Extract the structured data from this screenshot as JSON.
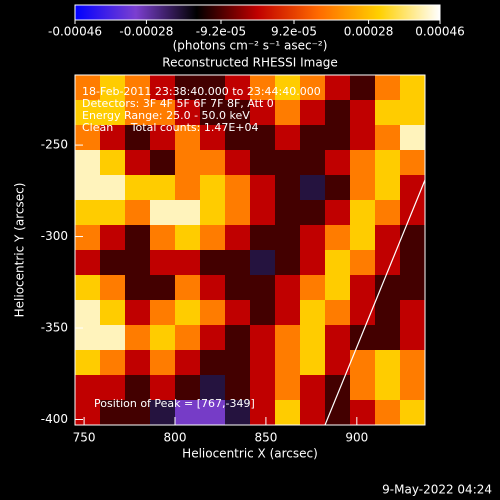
{
  "chart_data": {
    "type": "heatmap",
    "title": "Reconstructed RHESSI Image",
    "xlabel": "Heliocentric X (arcsec)",
    "ylabel": "Heliocentric Y (arcsec)",
    "colorbar_label": "(photons cm⁻² s⁻¹ asec⁻²)",
    "annotations": [
      "18-Feb-2011 23:38:40.000 to 23:44:40.000",
      "Detectors: 3F 4F 5F 6F 7F 8F, Att 0",
      "Energy Range: 25.0 - 50.0 keV",
      "Clean     Total counts: 1.47E+04"
    ],
    "peak_label": "Position of Peak = [767,-349]",
    "footer": "9-May-2022 04:24",
    "xlim": [
      745,
      937.5
    ],
    "ylim": [
      -403,
      -211.7
    ],
    "xticks": [
      750,
      800,
      850,
      900
    ],
    "yticks": [
      -250,
      -300,
      -350,
      -400
    ],
    "zlim": [
      -0.00046,
      0.00046
    ],
    "zticks": [
      -0.00046,
      -0.00028,
      {
        "value": -9.2e-05,
        "label": "-9.2e-05"
      },
      {
        "value": 9.2e-05,
        "label": "9.2e-05"
      },
      0.00028,
      0.00046
    ],
    "colormap": [
      "#0000ff",
      "#7b3fd0",
      "#000000",
      "#c00000",
      "#ff6a00",
      "#ffd000",
      "#ffffff"
    ],
    "z": [
      [
        0.00018,
        0.0003,
        0.00018,
        0,
        -0.0001,
        -0.0001,
        0,
        0.00018,
        0.0003,
        0.00018,
        0,
        -0.0001,
        0.00018,
        0.0003
      ],
      [
        0.0003,
        0.0003,
        0.00018,
        0.00018,
        0,
        -0.0001,
        -0.0001,
        0,
        0.00018,
        0,
        -0.0001,
        0,
        0.0003,
        0.0003
      ],
      [
        0.00018,
        0,
        -0.0001,
        0,
        0.00018,
        0,
        -0.0001,
        -0.0001,
        0,
        -0.0001,
        -0.0001,
        0,
        0.00018,
        0.00042
      ],
      [
        0.00042,
        0.0003,
        0,
        -0.0001,
        0.00018,
        0.00018,
        0,
        -0.0001,
        -0.0001,
        -0.0001,
        0,
        0.00018,
        0.0003,
        0.00018
      ],
      [
        0.00042,
        0.00042,
        0.0003,
        0.0003,
        0.00018,
        0.0003,
        0.00018,
        0,
        -0.0001,
        -0.0002,
        -0.0001,
        0.00018,
        0.0003,
        0
      ],
      [
        0.0003,
        0.0003,
        0.00018,
        0.00042,
        0.00042,
        0.0003,
        0.00018,
        0,
        -0.0001,
        -0.0001,
        0,
        0.0003,
        0.00018,
        0
      ],
      [
        0.00018,
        0,
        -0.0001,
        0.00018,
        0.0003,
        0.00018,
        0,
        -0.0001,
        -0.0001,
        0,
        0.00018,
        0.0003,
        0,
        -0.0001
      ],
      [
        0,
        -0.0001,
        -0.0001,
        0,
        0,
        -0.0001,
        -0.0001,
        -0.0002,
        -0.0001,
        0,
        0.0003,
        0.00018,
        0,
        -0.0001
      ],
      [
        0.0003,
        0.00018,
        -0.0001,
        -0.0001,
        0.00018,
        0,
        -0.0001,
        -0.0001,
        0,
        0.00018,
        0.0003,
        0,
        -0.0001,
        -0.0001
      ],
      [
        0.00042,
        0.0003,
        0,
        0.00018,
        0.0003,
        0.00018,
        0,
        -0.0001,
        0,
        0.0003,
        0.00018,
        0,
        -0.0001,
        0
      ],
      [
        0.00042,
        0.00042,
        0.00018,
        0.0003,
        0.00018,
        0,
        -0.0001,
        0,
        0.00018,
        0.0003,
        0,
        -0.0001,
        -0.0001,
        0
      ],
      [
        0.0003,
        0.00018,
        0,
        0.00018,
        0,
        -0.0001,
        -0.0001,
        0,
        0.00018,
        0.0003,
        0,
        0.00018,
        0.0003,
        0.00018
      ],
      [
        0,
        0,
        -0.0001,
        0,
        -0.0001,
        -0.0002,
        -0.0001,
        0,
        0.00018,
        0,
        -0.0001,
        0.00018,
        0.0003,
        0.00018
      ],
      [
        0,
        -0.0001,
        -0.0001,
        -0.0002,
        -0.0003,
        -0.0003,
        -0.0002,
        0,
        0.0003,
        0,
        -0.0001,
        0,
        0.00018,
        0.0003
      ]
    ]
  }
}
